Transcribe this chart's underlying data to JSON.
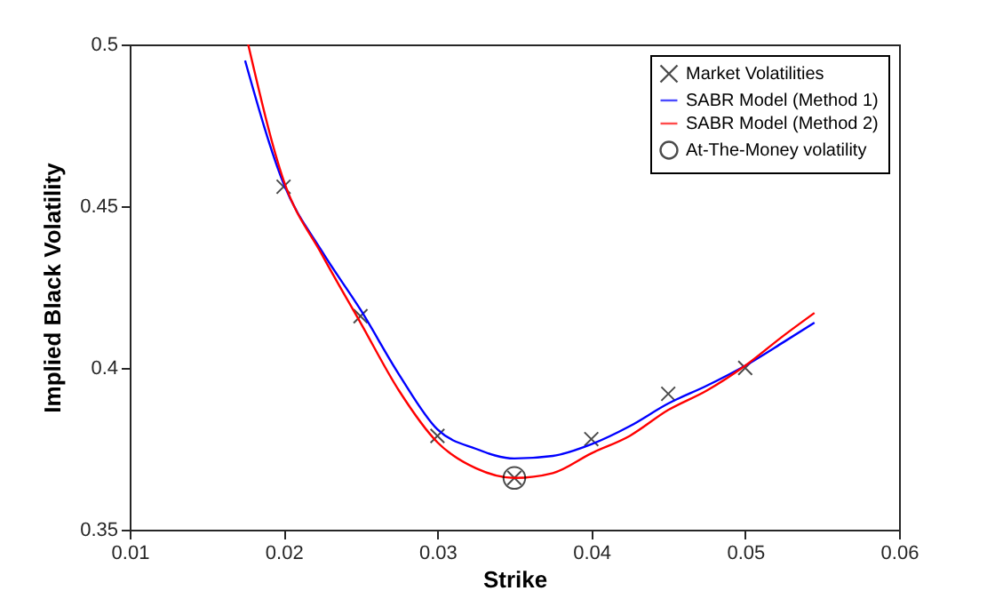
{
  "chart_data": {
    "type": "line",
    "xlabel": "Strike",
    "ylabel": "Implied Black Volatility",
    "xlim": [
      0.01,
      0.06
    ],
    "xticks": [
      0.01,
      0.02,
      0.03,
      0.04,
      0.05,
      0.06
    ],
    "ylim": [
      0.35,
      0.5
    ],
    "yticks": [
      0.35,
      0.4,
      0.45,
      0.5
    ],
    "grid": false,
    "legend": "top right",
    "series": [
      {
        "name": "Market Volatilities",
        "type": "scatter",
        "marker": "cross",
        "color": "#000000",
        "x": [
          0.02,
          0.025,
          0.03,
          0.035,
          0.04,
          0.045,
          0.05
        ],
        "values": [
          0.456,
          0.416,
          0.379,
          0.366,
          0.378,
          0.392,
          0.4
        ]
      },
      {
        "name": "SABR Model (Method 1)",
        "color": "#0000ff",
        "x": [
          0.0175,
          0.02,
          0.0225,
          0.025,
          0.0275,
          0.03,
          0.0325,
          0.035,
          0.0375,
          0.04,
          0.0425,
          0.045,
          0.0475,
          0.05,
          0.0525,
          0.0545
        ],
        "values": [
          0.495,
          0.457,
          0.436,
          0.418,
          0.398,
          0.381,
          0.375,
          0.372,
          0.3728,
          0.3764,
          0.382,
          0.389,
          0.3945,
          0.4007,
          0.408,
          0.414
        ]
      },
      {
        "name": "SABR Model (Method 2)",
        "color": "#ff0000",
        "x": [
          0.0177,
          0.02,
          0.0225,
          0.025,
          0.0275,
          0.03,
          0.0325,
          0.035,
          0.0375,
          0.04,
          0.0425,
          0.045,
          0.0475,
          0.05,
          0.0525,
          0.0545
        ],
        "values": [
          0.5,
          0.458,
          0.435,
          0.414,
          0.393,
          0.377,
          0.369,
          0.366,
          0.3675,
          0.3736,
          0.379,
          0.387,
          0.393,
          0.4007,
          0.41,
          0.417
        ]
      },
      {
        "name": "At-The-Money volatility",
        "type": "scatter",
        "marker": "circle",
        "color": "#000000",
        "x": [
          0.035
        ],
        "values": [
          0.366
        ]
      }
    ]
  }
}
